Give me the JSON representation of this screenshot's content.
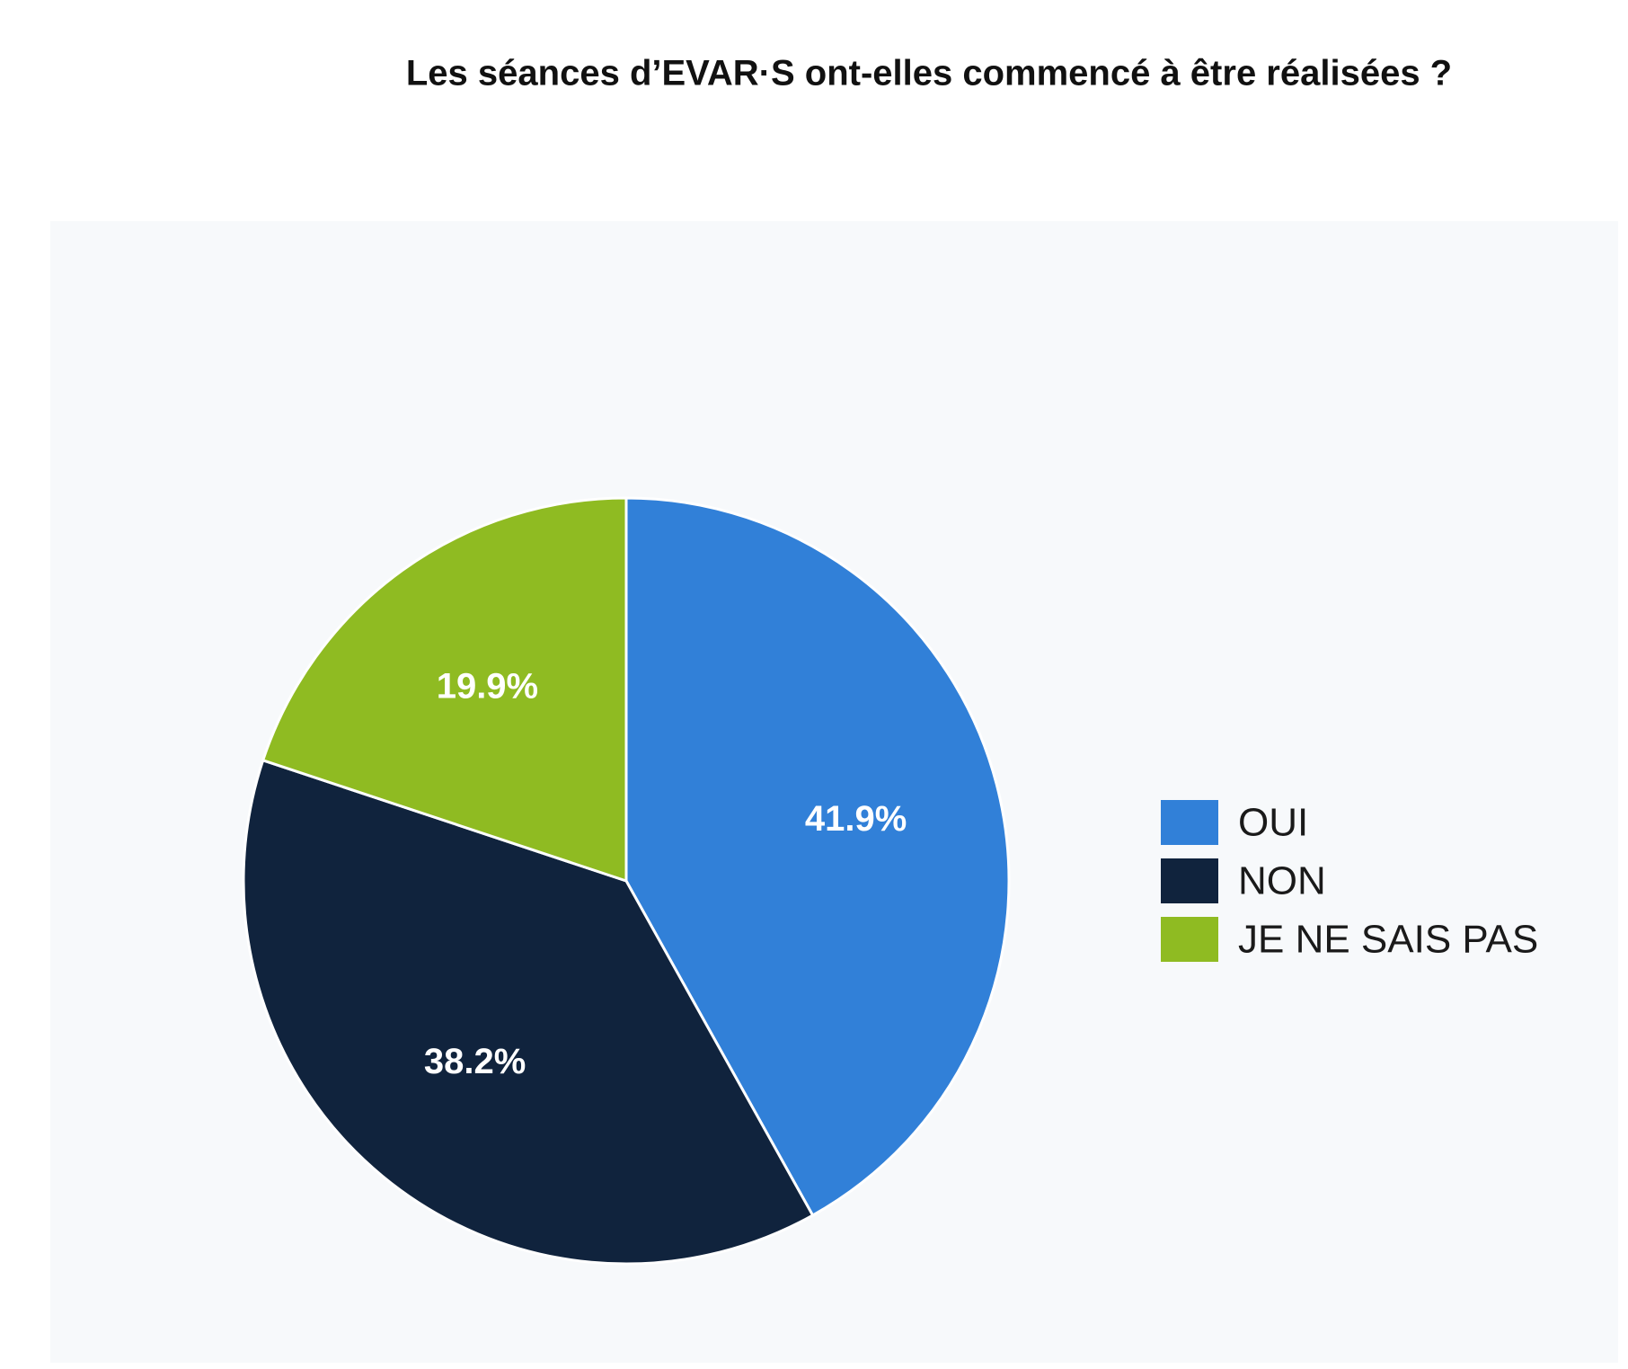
{
  "chart_data": {
    "type": "pie",
    "title": "Les séances d’EVAR·S ont-elles commencé à être réalisées ?",
    "categories": [
      "OUI",
      "NON",
      "JE NE SAIS PAS"
    ],
    "values": [
      41.9,
      38.2,
      19.9
    ],
    "value_labels": [
      "41.9%",
      "38.2%",
      "19.9%"
    ],
    "colors": [
      "#3180d8",
      "#10233d",
      "#8fbb22"
    ],
    "legend": "right"
  }
}
